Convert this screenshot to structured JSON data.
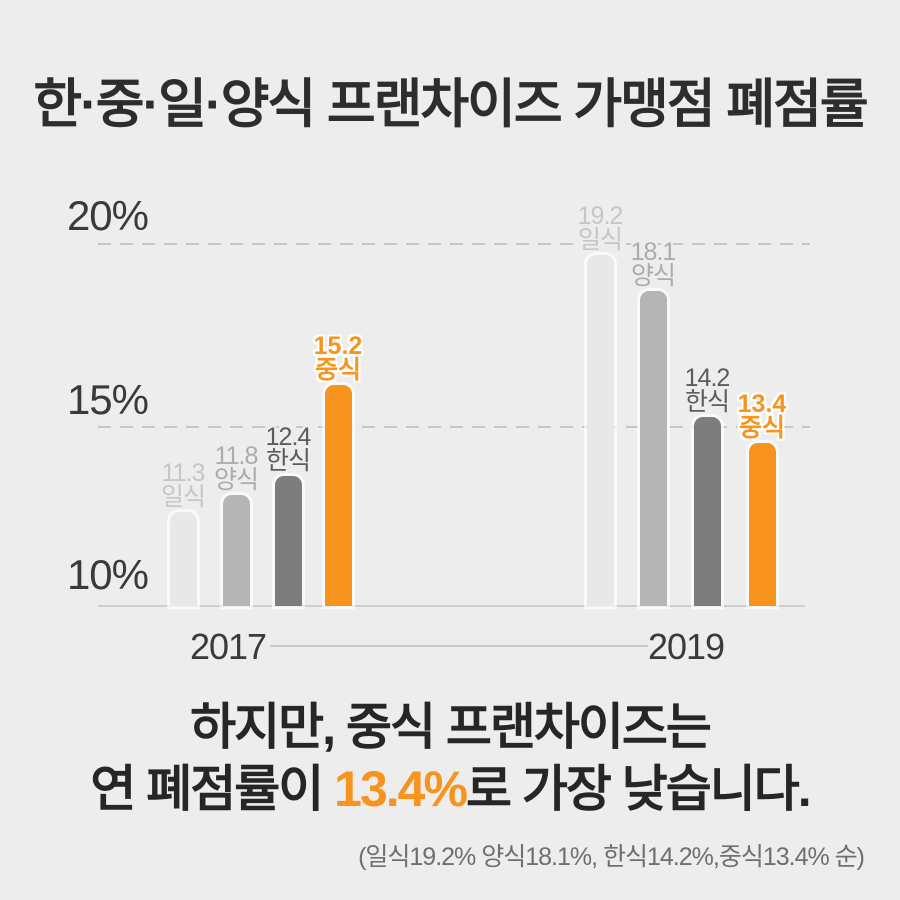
{
  "page": {
    "background": "#ededed"
  },
  "title": "한·중·일·양식 프랜차이즈 가맹점 폐점률",
  "chart_data": {
    "type": "bar",
    "title": "한·중·일·양식 프랜차이즈 가맹점 폐점률",
    "unit": "%",
    "ylabel": "폐점률",
    "y_axis": {
      "ticks": [
        "20%",
        "15%",
        "10%"
      ],
      "range": [
        10,
        21
      ],
      "gridlines_at": [
        20,
        15
      ],
      "grid": "dashed"
    },
    "legend_position": "none",
    "groups": [
      {
        "year": "2017",
        "bars": [
          {
            "category": "일식",
            "value": 11.3,
            "highlight": false
          },
          {
            "category": "양식",
            "value": 11.8,
            "highlight": false
          },
          {
            "category": "한식",
            "value": 12.4,
            "highlight": false
          },
          {
            "category": "중식",
            "value": 15.2,
            "highlight": true
          }
        ]
      },
      {
        "year": "2019",
        "bars": [
          {
            "category": "일식",
            "value": 19.2,
            "highlight": false
          },
          {
            "category": "양식",
            "value": 18.1,
            "highlight": false
          },
          {
            "category": "한식",
            "value": 14.2,
            "highlight": false
          },
          {
            "category": "중식",
            "value": 13.4,
            "highlight": true
          }
        ]
      }
    ],
    "colors": {
      "일식": "#e8e8e8",
      "양식": "#b5b5b5",
      "한식": "#7d7d7d",
      "중식": "#f7941e"
    },
    "label_colors": {
      "일식": "#c6c6c6",
      "양식": "#acacac",
      "한식": "#5c5c5c",
      "중식": "#f7941e"
    },
    "accent_color": "#f7941e"
  },
  "caption": {
    "line1": "하지만, 중식 프랜차이즈는",
    "line2_prefix": "연 폐점률이 ",
    "line2_highlight": "13.4%",
    "line2_suffix": "로 가장 낮습니다.",
    "footnote": "(일식19.2% 양식18.1%, 한식14.2%,중식13.4% 순)"
  }
}
